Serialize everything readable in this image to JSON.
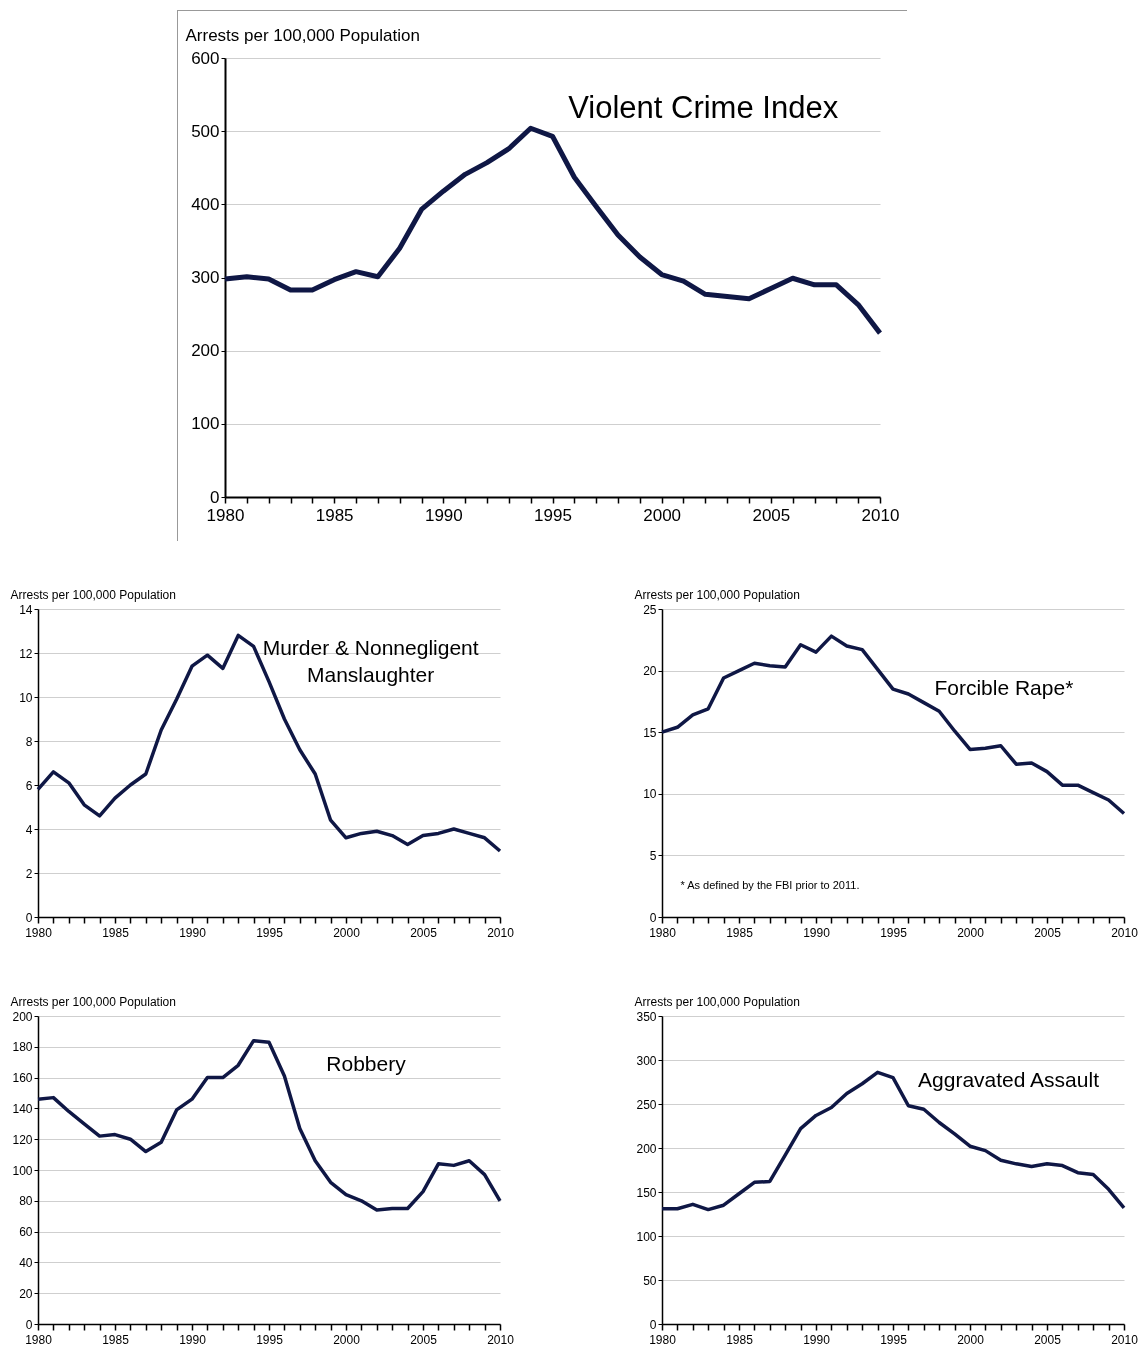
{
  "chart_data": [
    {
      "type": "line",
      "ylabel": "Arrests per 100,000 Population",
      "x": [
        1980,
        1981,
        1982,
        1983,
        1984,
        1985,
        1986,
        1987,
        1988,
        1989,
        1990,
        1991,
        1992,
        1993,
        1994,
        1995,
        1996,
        1997,
        1998,
        1999,
        2000,
        2001,
        2002,
        2003,
        2004,
        2005,
        2006,
        2007,
        2008,
        2009,
        2010
      ],
      "series": [
        {
          "name": "Violent Crime Index",
          "color": "#0f1745",
          "values": [
            298,
            301,
            298,
            283,
            283,
            297,
            308,
            301,
            340,
            393,
            418,
            441,
            457,
            476,
            504,
            493,
            437,
            397,
            358,
            328,
            304,
            295,
            277,
            274,
            271,
            285,
            299,
            290,
            290,
            263,
            224
          ]
        }
      ],
      "xlim": [
        1980,
        2010
      ],
      "ylim": [
        0,
        600
      ],
      "yticks": [
        0,
        100,
        200,
        300,
        400,
        500,
        600
      ],
      "xticks": [
        1980,
        {
          "value": 1981,
          "label": null
        },
        {
          "value": 1982,
          "label": null
        },
        {
          "value": 1983,
          "label": null
        },
        {
          "value": 1984,
          "label": null
        },
        1985,
        {
          "value": 1986,
          "label": null
        },
        {
          "value": 1987,
          "label": null
        },
        {
          "value": 1988,
          "label": null
        },
        {
          "value": 1989,
          "label": null
        },
        1990,
        {
          "value": 1991,
          "label": null
        },
        {
          "value": 1992,
          "label": null
        },
        {
          "value": 1993,
          "label": null
        },
        {
          "value": 1994,
          "label": null
        },
        1995,
        {
          "value": 1996,
          "label": null
        },
        {
          "value": 1997,
          "label": null
        },
        {
          "value": 1998,
          "label": null
        },
        {
          "value": 1999,
          "label": null
        },
        2000,
        {
          "value": 2001,
          "label": null
        },
        {
          "value": 2002,
          "label": null
        },
        {
          "value": 2003,
          "label": null
        },
        {
          "value": 2004,
          "label": null
        },
        2005,
        {
          "value": 2006,
          "label": null
        },
        {
          "value": 2007,
          "label": null
        },
        {
          "value": 2008,
          "label": null
        },
        {
          "value": 2009,
          "label": null
        },
        2010
      ],
      "grid": "y",
      "line_style": "solid",
      "marker": "none"
    },
    {
      "type": "line",
      "ylabel": "Arrests per 100,000 Population",
      "x": [
        1980,
        1981,
        1982,
        1983,
        1984,
        1985,
        1986,
        1987,
        1988,
        1989,
        1990,
        1991,
        1992,
        1993,
        1994,
        1995,
        1996,
        1997,
        1998,
        1999,
        2000,
        2001,
        2002,
        2003,
        2004,
        2005,
        2006,
        2007,
        2008,
        2009,
        2010
      ],
      "series": [
        {
          "name": "Murder & Nonnegligent Manslaughter",
          "color": "#0f1745",
          "values": [
            5.8,
            6.6,
            6.1,
            5.1,
            4.6,
            5.4,
            6.0,
            6.5,
            8.5,
            9.9,
            11.4,
            11.9,
            11.3,
            12.8,
            12.3,
            10.7,
            9.0,
            7.6,
            6.5,
            4.4,
            3.6,
            3.8,
            3.9,
            3.7,
            3.3,
            3.7,
            3.8,
            4.0,
            3.8,
            3.6,
            3.0
          ]
        }
      ],
      "xlim": [
        1980,
        2010
      ],
      "ylim": [
        0,
        14
      ],
      "yticks": [
        0,
        2,
        4,
        6,
        8,
        10,
        12,
        14
      ],
      "xticks": [
        1980,
        {
          "value": 1981,
          "label": null
        },
        {
          "value": 1982,
          "label": null
        },
        {
          "value": 1983,
          "label": null
        },
        {
          "value": 1984,
          "label": null
        },
        1985,
        {
          "value": 1986,
          "label": null
        },
        {
          "value": 1987,
          "label": null
        },
        {
          "value": 1988,
          "label": null
        },
        {
          "value": 1989,
          "label": null
        },
        1990,
        {
          "value": 1991,
          "label": null
        },
        {
          "value": 1992,
          "label": null
        },
        {
          "value": 1993,
          "label": null
        },
        {
          "value": 1994,
          "label": null
        },
        1995,
        {
          "value": 1996,
          "label": null
        },
        {
          "value": 1997,
          "label": null
        },
        {
          "value": 1998,
          "label": null
        },
        {
          "value": 1999,
          "label": null
        },
        2000,
        {
          "value": 2001,
          "label": null
        },
        {
          "value": 2002,
          "label": null
        },
        {
          "value": 2003,
          "label": null
        },
        {
          "value": 2004,
          "label": null
        },
        2005,
        {
          "value": 2006,
          "label": null
        },
        {
          "value": 2007,
          "label": null
        },
        {
          "value": 2008,
          "label": null
        },
        {
          "value": 2009,
          "label": null
        },
        2010
      ],
      "grid": "y",
      "line_style": "solid",
      "marker": "none"
    },
    {
      "type": "line",
      "ylabel": "Arrests per 100,000 Population",
      "annotations": [
        "* As defined by the FBI prior to 2011."
      ],
      "x": [
        1980,
        1981,
        1982,
        1983,
        1984,
        1985,
        1986,
        1987,
        1988,
        1989,
        1990,
        1991,
        1992,
        1993,
        1994,
        1995,
        1996,
        1997,
        1998,
        1999,
        2000,
        2001,
        2002,
        2003,
        2004,
        2005,
        2006,
        2007,
        2008,
        2009,
        2010
      ],
      "series": [
        {
          "name": "Forcible Rape*",
          "color": "#0f1745",
          "values": [
            15.0,
            15.4,
            16.4,
            16.9,
            19.4,
            20.0,
            20.6,
            20.4,
            20.3,
            22.1,
            21.5,
            22.8,
            22.0,
            21.7,
            20.1,
            18.5,
            18.1,
            17.4,
            16.7,
            15.1,
            13.6,
            13.7,
            13.9,
            12.4,
            12.5,
            11.8,
            10.7,
            10.7,
            10.1,
            9.5,
            8.4
          ]
        }
      ],
      "xlim": [
        1980,
        2010
      ],
      "ylim": [
        0,
        25
      ],
      "yticks": [
        0,
        5,
        10,
        15,
        20,
        25
      ],
      "xticks": [
        1980,
        {
          "value": 1981,
          "label": null
        },
        {
          "value": 1982,
          "label": null
        },
        {
          "value": 1983,
          "label": null
        },
        {
          "value": 1984,
          "label": null
        },
        1985,
        {
          "value": 1986,
          "label": null
        },
        {
          "value": 1987,
          "label": null
        },
        {
          "value": 1988,
          "label": null
        },
        {
          "value": 1989,
          "label": null
        },
        1990,
        {
          "value": 1991,
          "label": null
        },
        {
          "value": 1992,
          "label": null
        },
        {
          "value": 1993,
          "label": null
        },
        {
          "value": 1994,
          "label": null
        },
        1995,
        {
          "value": 1996,
          "label": null
        },
        {
          "value": 1997,
          "label": null
        },
        {
          "value": 1998,
          "label": null
        },
        {
          "value": 1999,
          "label": null
        },
        2000,
        {
          "value": 2001,
          "label": null
        },
        {
          "value": 2002,
          "label": null
        },
        {
          "value": 2003,
          "label": null
        },
        {
          "value": 2004,
          "label": null
        },
        2005,
        {
          "value": 2006,
          "label": null
        },
        {
          "value": 2007,
          "label": null
        },
        {
          "value": 2008,
          "label": null
        },
        {
          "value": 2009,
          "label": null
        },
        2010
      ],
      "grid": "y",
      "line_style": "solid",
      "marker": "none"
    },
    {
      "type": "line",
      "ylabel": "Arrests per 100,000 Population",
      "x": [
        1980,
        1981,
        1982,
        1983,
        1984,
        1985,
        1986,
        1987,
        1988,
        1989,
        1990,
        1991,
        1992,
        1993,
        1994,
        1995,
        1996,
        1997,
        1998,
        1999,
        2000,
        2001,
        2002,
        2003,
        2004,
        2005,
        2006,
        2007,
        2008,
        2009,
        2010
      ],
      "series": [
        {
          "name": "Robbery",
          "color": "#0f1745",
          "values": [
            146,
            147,
            138,
            130,
            122,
            123,
            120,
            112,
            118,
            139,
            146,
            160,
            160,
            168,
            184,
            183,
            161,
            127,
            106,
            92,
            84,
            80,
            74,
            75,
            75,
            86,
            104,
            103,
            106,
            97,
            80
          ]
        }
      ],
      "xlim": [
        1980,
        2010
      ],
      "ylim": [
        0,
        200
      ],
      "yticks": [
        0,
        20,
        40,
        60,
        80,
        100,
        120,
        140,
        160,
        180,
        200
      ],
      "xticks": [
        1980,
        {
          "value": 1981,
          "label": null
        },
        {
          "value": 1982,
          "label": null
        },
        {
          "value": 1983,
          "label": null
        },
        {
          "value": 1984,
          "label": null
        },
        1985,
        {
          "value": 1986,
          "label": null
        },
        {
          "value": 1987,
          "label": null
        },
        {
          "value": 1988,
          "label": null
        },
        {
          "value": 1989,
          "label": null
        },
        1990,
        {
          "value": 1991,
          "label": null
        },
        {
          "value": 1992,
          "label": null
        },
        {
          "value": 1993,
          "label": null
        },
        {
          "value": 1994,
          "label": null
        },
        1995,
        {
          "value": 1996,
          "label": null
        },
        {
          "value": 1997,
          "label": null
        },
        {
          "value": 1998,
          "label": null
        },
        {
          "value": 1999,
          "label": null
        },
        2000,
        {
          "value": 2001,
          "label": null
        },
        {
          "value": 2002,
          "label": null
        },
        {
          "value": 2003,
          "label": null
        },
        {
          "value": 2004,
          "label": null
        },
        2005,
        {
          "value": 2006,
          "label": null
        },
        {
          "value": 2007,
          "label": null
        },
        {
          "value": 2008,
          "label": null
        },
        {
          "value": 2009,
          "label": null
        },
        2010
      ],
      "grid": "y",
      "line_style": "solid",
      "marker": "none"
    },
    {
      "type": "line",
      "ylabel": "Arrests per 100,000 Population",
      "x": [
        1980,
        1981,
        1982,
        1983,
        1984,
        1985,
        1986,
        1987,
        1988,
        1989,
        1990,
        1991,
        1992,
        1993,
        1994,
        1995,
        1996,
        1997,
        1998,
        1999,
        2000,
        2001,
        2002,
        2003,
        2004,
        2005,
        2006,
        2007,
        2008,
        2009,
        2010
      ],
      "series": [
        {
          "name": "Aggravated Assault",
          "color": "#0f1745",
          "values": [
            131,
            131,
            136,
            130,
            135,
            148,
            161,
            162,
            192,
            222,
            237,
            246,
            262,
            273,
            286,
            280,
            248,
            244,
            229,
            216,
            202,
            197,
            186,
            182,
            179,
            182,
            180,
            172,
            170,
            153,
            132
          ]
        }
      ],
      "xlim": [
        1980,
        2010
      ],
      "ylim": [
        0,
        350
      ],
      "yticks": [
        0,
        50,
        100,
        150,
        200,
        250,
        300,
        350
      ],
      "xticks": [
        1980,
        {
          "value": 1981,
          "label": null
        },
        {
          "value": 1982,
          "label": null
        },
        {
          "value": 1983,
          "label": null
        },
        {
          "value": 1984,
          "label": null
        },
        1985,
        {
          "value": 1986,
          "label": null
        },
        {
          "value": 1987,
          "label": null
        },
        {
          "value": 1988,
          "label": null
        },
        {
          "value": 1989,
          "label": null
        },
        1990,
        {
          "value": 1991,
          "label": null
        },
        {
          "value": 1992,
          "label": null
        },
        {
          "value": 1993,
          "label": null
        },
        {
          "value": 1994,
          "label": null
        },
        1995,
        {
          "value": 1996,
          "label": null
        },
        {
          "value": 1997,
          "label": null
        },
        {
          "value": 1998,
          "label": null
        },
        {
          "value": 1999,
          "label": null
        },
        2000,
        {
          "value": 2001,
          "label": null
        },
        {
          "value": 2002,
          "label": null
        },
        {
          "value": 2003,
          "label": null
        },
        {
          "value": 2004,
          "label": null
        },
        2005,
        {
          "value": 2006,
          "label": null
        },
        {
          "value": 2007,
          "label": null
        },
        {
          "value": 2008,
          "label": null
        },
        {
          "value": 2009,
          "label": null
        },
        2010
      ],
      "grid": "y",
      "line_style": "solid",
      "marker": "none"
    }
  ]
}
